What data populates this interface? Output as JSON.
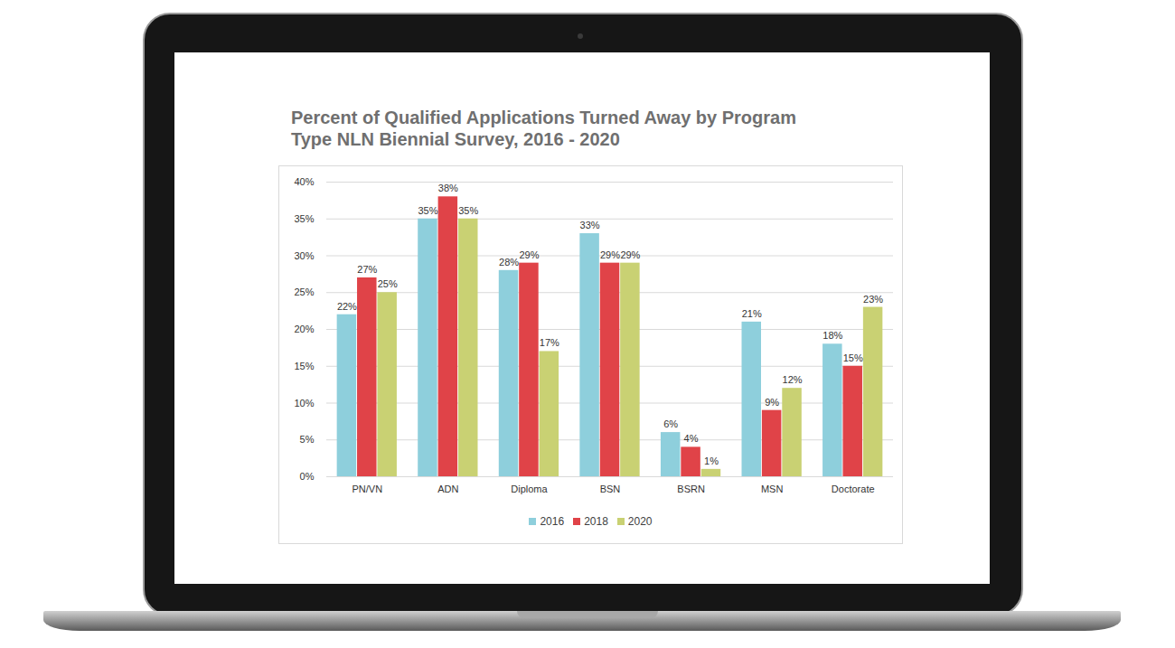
{
  "chart_data": {
    "type": "bar",
    "title": "Percent of Qualified Applications Turned Away by Program Type NLN Biennial Survey, 2016 - 2020",
    "categories": [
      "PN/VN",
      "ADN",
      "Diploma",
      "BSN",
      "BSRN",
      "MSN",
      "Doctorate"
    ],
    "series": [
      {
        "name": "2016",
        "color": "#8ecfdc",
        "values": [
          22,
          35,
          28,
          33,
          6,
          21,
          18
        ],
        "value_labels": [
          "22%",
          "35%",
          "28%",
          "33%",
          "6%",
          "21%",
          "18%"
        ]
      },
      {
        "name": "2018",
        "color": "#e04348",
        "values": [
          27,
          38,
          29,
          29,
          4,
          9,
          15
        ],
        "value_labels": [
          "27%",
          "38%",
          "29%",
          "29%",
          "4%",
          "9%",
          "15%"
        ]
      },
      {
        "name": "2020",
        "color": "#c9d173",
        "values": [
          25,
          35,
          17,
          29,
          1,
          12,
          23
        ],
        "value_labels": [
          "25%",
          "35%",
          "17%",
          "29%",
          "1%",
          "12%",
          "23%"
        ]
      }
    ],
    "ylim": [
      0,
      40
    ],
    "yticks": [
      {
        "value": 0,
        "label": "0%"
      },
      {
        "value": 5,
        "label": "5%"
      },
      {
        "value": 10,
        "label": "10%"
      },
      {
        "value": 15,
        "label": "15%"
      },
      {
        "value": 20,
        "label": "20%"
      },
      {
        "value": 25,
        "label": "25%"
      },
      {
        "value": 30,
        "label": "30%"
      },
      {
        "value": 35,
        "label": "35%"
      },
      {
        "value": 40,
        "label": "40%"
      }
    ],
    "grid": true,
    "data_labels": true,
    "legend": "bottom"
  }
}
